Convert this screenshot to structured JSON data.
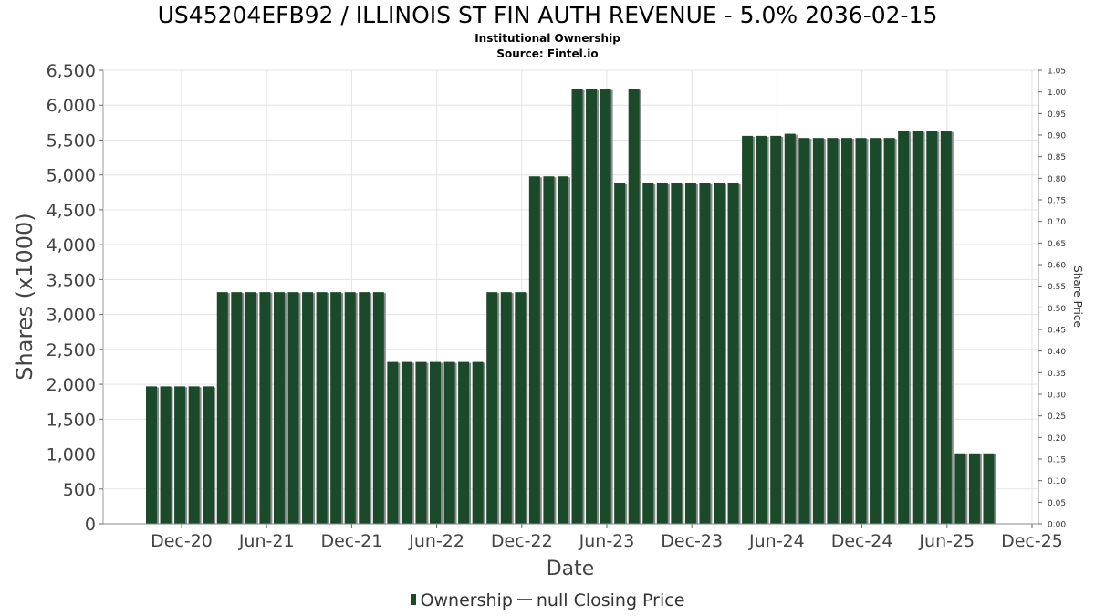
{
  "chart_data": {
    "type": "bar",
    "title": "US45204EFB92 / ILLINOIS ST FIN AUTH REVENUE - 5.0% 2036-02-15",
    "subtitle": "Institutional Ownership",
    "source": "Source: Fintel.io",
    "xlabel": "Date",
    "ylabel": "Shares (x1000)",
    "y2label": "Share Price",
    "ylim": [
      0,
      6500
    ],
    "y2lim": [
      0,
      1.05
    ],
    "yticks": [
      "0",
      "500",
      "1,000",
      "1,500",
      "2,000",
      "2,500",
      "3,000",
      "3,500",
      "4,000",
      "4,500",
      "5,000",
      "5,500",
      "6,000",
      "6,500"
    ],
    "y2ticks": [
      "0.00",
      "0.05",
      "0.10",
      "0.15",
      "0.20",
      "0.25",
      "0.30",
      "0.35",
      "0.40",
      "0.45",
      "0.50",
      "0.55",
      "0.60",
      "0.65",
      "0.70",
      "0.75",
      "0.80",
      "0.85",
      "0.90",
      "0.95",
      "1.00",
      "1.05"
    ],
    "xticks": [
      "Dec-20",
      "Jun-21",
      "Dec-21",
      "Jun-22",
      "Dec-22",
      "Jun-23",
      "Dec-23",
      "Jun-24",
      "Dec-24",
      "Jun-25",
      "Dec-25"
    ],
    "grid": true,
    "series": [
      {
        "name": "Ownership",
        "color": "#1a4a2a",
        "values": [
          1970,
          1970,
          1970,
          1970,
          1970,
          3320,
          3320,
          3320,
          3320,
          3320,
          3320,
          3320,
          3320,
          3320,
          3320,
          3320,
          3320,
          2320,
          2320,
          2320,
          2320,
          2320,
          2320,
          2320,
          3320,
          3320,
          3320,
          4980,
          4980,
          4980,
          6230,
          6230,
          6230,
          4880,
          6230,
          4880,
          4880,
          4880,
          4880,
          4880,
          4880,
          4880,
          5560,
          5560,
          5560,
          5590,
          5530,
          5530,
          5530,
          5530,
          5530,
          5530,
          5530,
          5630,
          5630,
          5630,
          5630,
          1010,
          1010,
          1010
        ]
      }
    ],
    "legend": {
      "placement": "bottom-center",
      "ownership_label": "Ownership",
      "closing_label": "null Closing Price"
    }
  }
}
